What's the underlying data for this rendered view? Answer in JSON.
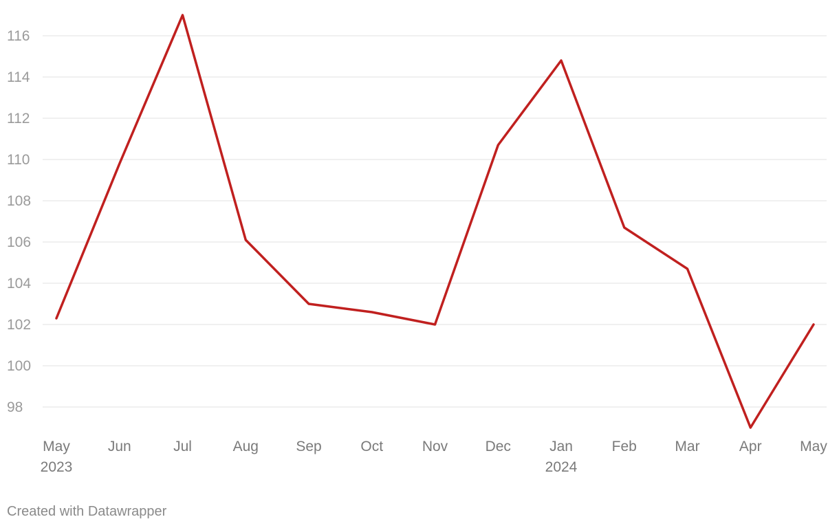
{
  "chart_data": {
    "type": "line",
    "title": "",
    "xlabel": "",
    "ylabel": "",
    "x": [
      "May",
      "Jun",
      "Jul",
      "Aug",
      "Sep",
      "Oct",
      "Nov",
      "Dec",
      "Jan",
      "Feb",
      "Mar",
      "Apr",
      "May"
    ],
    "x_year_labels": [
      "2023",
      "",
      "",
      "",
      "",
      "",
      "",
      "",
      "2024",
      "",
      "",
      "",
      ""
    ],
    "series": [
      {
        "values": [
          102.3,
          109.8,
          117.0,
          106.1,
          103.0,
          102.6,
          102.0,
          110.7,
          114.8,
          106.7,
          104.7,
          97.0,
          102.0
        ],
        "color": "#c0201f"
      }
    ],
    "yticks": [
      98,
      100,
      102,
      104,
      106,
      108,
      110,
      112,
      114,
      116
    ],
    "ylim": [
      97,
      117
    ],
    "grid": true,
    "legend": "none"
  },
  "footer": {
    "credit": "Created with Datawrapper"
  }
}
